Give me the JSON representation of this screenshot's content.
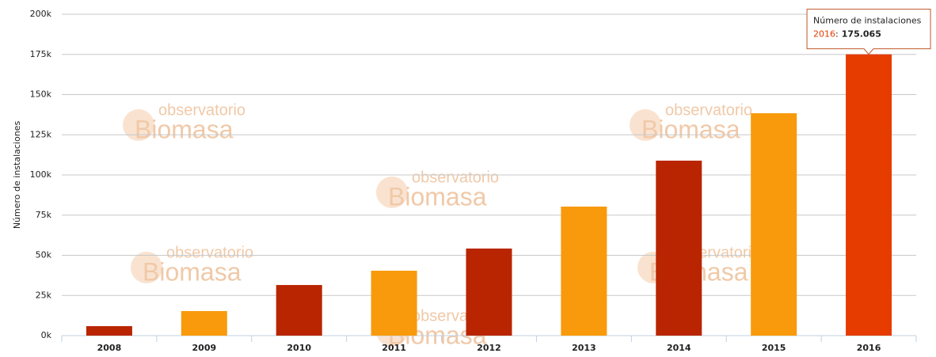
{
  "chart_data": {
    "type": "bar",
    "y_label": "Número de instalaciones",
    "categories": [
      "2008",
      "2009",
      "2010",
      "2011",
      "2012",
      "2013",
      "2014",
      "2015",
      "2016"
    ],
    "values": [
      5900,
      15300,
      31500,
      40400,
      54200,
      80300,
      108900,
      138400,
      175065
    ],
    "colors": [
      "#b92500",
      "#f89a0b",
      "#b92500",
      "#f89a0b",
      "#b92500",
      "#f89a0b",
      "#b92500",
      "#f89a0b",
      "#e63c00"
    ],
    "ylim": [
      0,
      200000
    ],
    "yticks": [
      {
        "value": 0,
        "label": "0k"
      },
      {
        "value": 25000,
        "label": "25k"
      },
      {
        "value": 50000,
        "label": "50k"
      },
      {
        "value": 75000,
        "label": "75k"
      },
      {
        "value": 100000,
        "label": "100k"
      },
      {
        "value": 125000,
        "label": "125k"
      },
      {
        "value": 150000,
        "label": "150k"
      },
      {
        "value": 175000,
        "label": "175k"
      },
      {
        "value": 200000,
        "label": "200k"
      }
    ],
    "grid": true,
    "tooltip": {
      "title": "Número de instalaciones",
      "category": "2016",
      "separator": ":",
      "value_label": "175.065"
    },
    "watermark": {
      "top": "observatorio",
      "bottom": "Biomasa"
    }
  }
}
